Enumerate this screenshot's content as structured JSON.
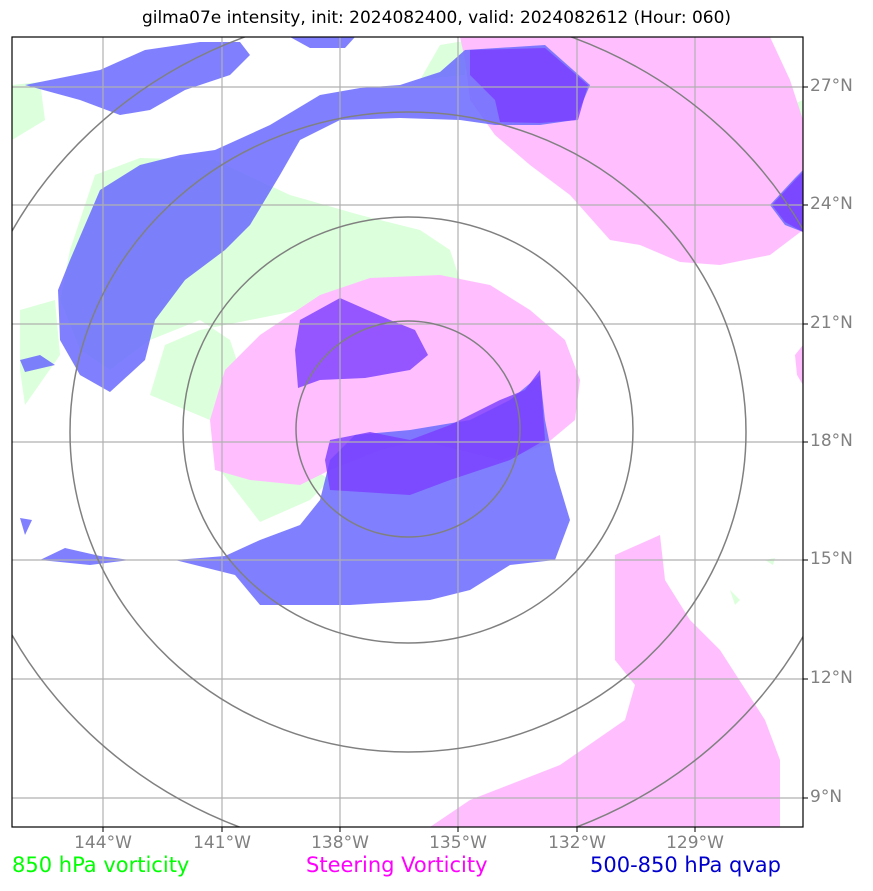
{
  "title": "gilma07e intensity, init: 2024082400, valid: 2024082612 (Hour: 060)",
  "lat_labels": [
    "27°N",
    "24°N",
    "21°N",
    "18°N",
    "15°N",
    "12°N",
    "9°N"
  ],
  "lon_labels": [
    "144°W",
    "141°W",
    "138°W",
    "135°W",
    "132°W",
    "129°W"
  ],
  "legend": [
    {
      "label": "850 hPa vorticity",
      "color": "#00ff00"
    },
    {
      "label": "Steering Vorticity",
      "color": "#ff00ff"
    },
    {
      "label": "500-850 hPa qvap",
      "color": "#0000cc"
    }
  ],
  "colors": {
    "vorticity_850": "#dcffdc",
    "steering_vorticity": "#ffbfff",
    "qvap": "#6a6aff",
    "overlap_purple": "#7a3cff",
    "grid": "#b0b0b0",
    "range_rings": "#808080"
  }
}
